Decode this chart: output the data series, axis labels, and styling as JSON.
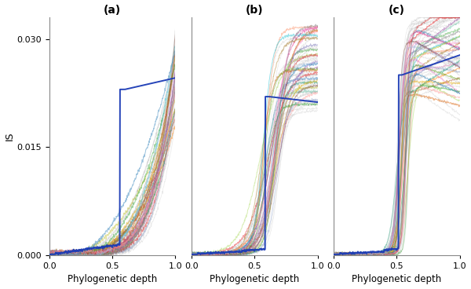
{
  "title_a": "(a)",
  "title_b": "(b)",
  "title_c": "(c)",
  "xlabel": "Phylogenetic depth",
  "ylabel": "IS",
  "ylim": [
    0,
    0.033
  ],
  "xlim": [
    0,
    1.0
  ],
  "yticks": [
    0.0,
    0.015,
    0.03
  ],
  "xticks": [
    0,
    0.5,
    1
  ],
  "highlight_color": "#1a3ab5",
  "background_color": "#ffffff",
  "figsize": [
    6.0,
    3.68
  ],
  "n_curves": 60,
  "line_alpha": 0.45,
  "line_width": 0.7,
  "highlight_lw": 1.4
}
